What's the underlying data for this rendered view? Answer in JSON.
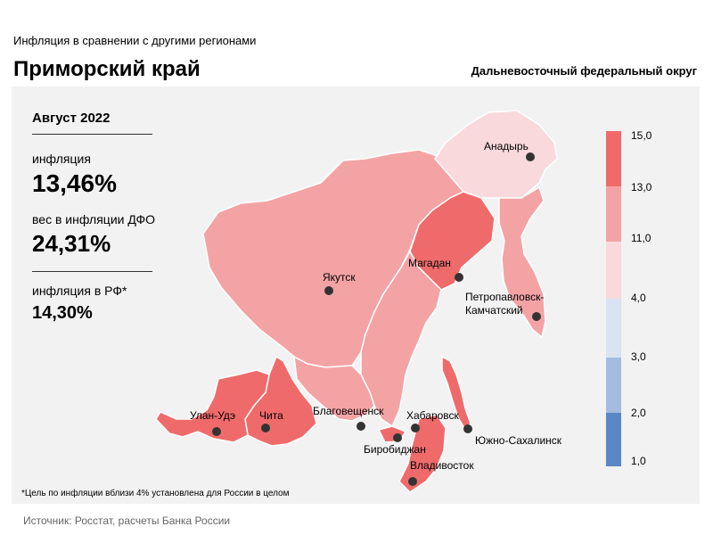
{
  "header": {
    "subtitle": "Инфляция  в сравнении  с другими  регионами",
    "title": "Приморский край",
    "district": "Дальневосточный федеральный округ"
  },
  "info": {
    "date": "Август 2022",
    "inflation_label": "инфляция",
    "inflation_value": "13,46%",
    "weight_label": "вес в инфляции  ДФО",
    "weight_value": "24,31%",
    "rf_label": "инфляция  в РФ*",
    "rf_value": "14,30%"
  },
  "footnote": "*Цель по инфляции вблизи 4% установлена для России в целом",
  "source": "Источник: Росстат, расчеты  Банка  России",
  "colors": {
    "bin_13_15": "#ef6b6b",
    "bin_11_13": "#f4a3a5",
    "bin_4_11": "#f9d9dc",
    "bin_3_4": "#d9e3f1",
    "bin_2_3": "#a3bcdf",
    "bin_1_2": "#5b87c5"
  },
  "legend": {
    "ticks": [
      "15,0",
      "13,0",
      "11,0",
      "4,0",
      "3,0",
      "2,0",
      "1,0"
    ]
  },
  "cities": [
    {
      "name": "Анадырь"
    },
    {
      "name": "Магадан"
    },
    {
      "name": "Якутск"
    },
    {
      "name": "Петропавловск-"
    },
    {
      "name": "Камчатский"
    },
    {
      "name": "Улан-Удэ"
    },
    {
      "name": "Чита"
    },
    {
      "name": "Благовещенск"
    },
    {
      "name": "Хабаровск"
    },
    {
      "name": "Биробиджан"
    },
    {
      "name": "Южно-Сахалинск"
    },
    {
      "name": "Владивосток"
    }
  ]
}
